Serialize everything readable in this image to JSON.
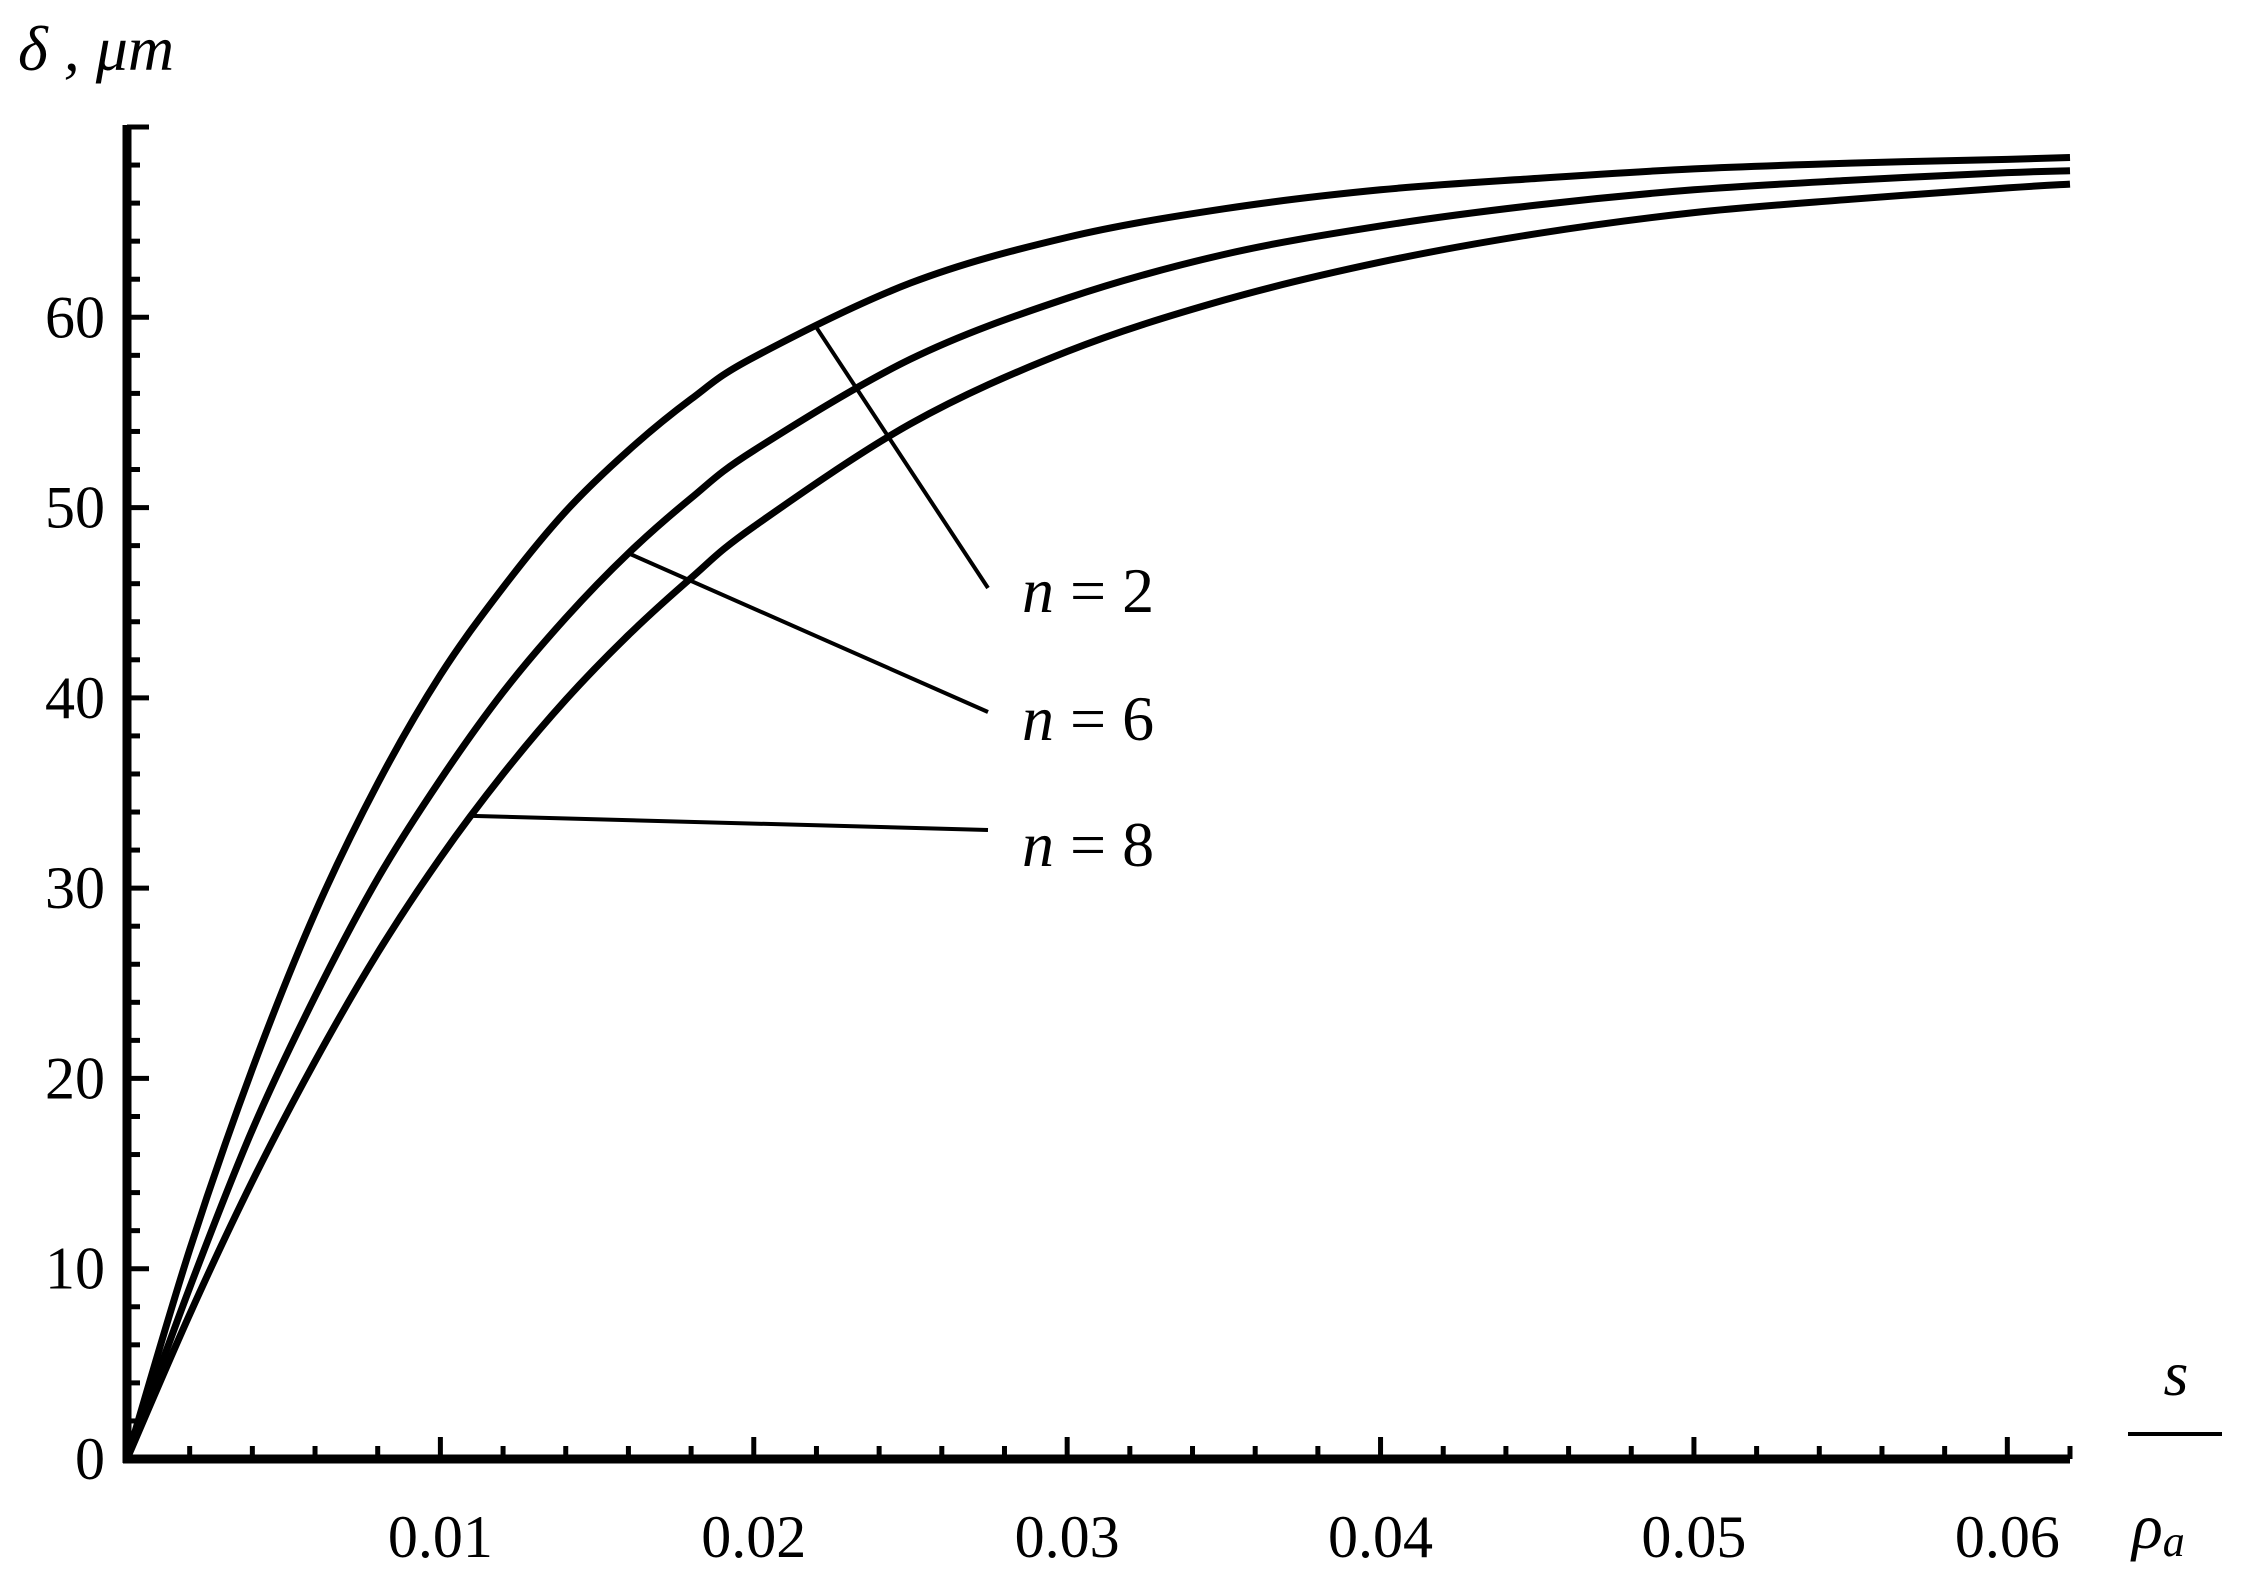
{
  "chart_data": {
    "type": "line",
    "ylabel": "δ , μm",
    "xlabel_numerator": "s",
    "xlabel_denominator_base": "ρ",
    "xlabel_denominator_sub": "a",
    "xlim": [
      0,
      0.062
    ],
    "ylim": [
      0,
      70
    ],
    "x_ticks": [
      "0.01",
      "0.02",
      "0.03",
      "0.04",
      "0.05",
      "0.06"
    ],
    "x_tick_values": [
      0.01,
      0.02,
      0.03,
      0.04,
      0.05,
      0.06
    ],
    "y_ticks": [
      "0",
      "10",
      "20",
      "30",
      "40",
      "50",
      "60"
    ],
    "y_tick_values": [
      0,
      10,
      20,
      30,
      40,
      50,
      60
    ],
    "grid": false,
    "line_color": "#000000",
    "series": [
      {
        "name": "n = 2",
        "x": [
          0,
          0.002,
          0.004,
          0.006,
          0.008,
          0.01,
          0.012,
          0.014,
          0.016,
          0.018,
          0.02,
          0.025,
          0.03,
          0.035,
          0.04,
          0.045,
          0.05,
          0.055,
          0.06,
          0.062
        ],
        "y": [
          0,
          11.0,
          20.5,
          28.7,
          35.5,
          41.2,
          45.8,
          49.8,
          53.0,
          55.7,
          57.9,
          61.8,
          64.2,
          65.7,
          66.7,
          67.3,
          67.8,
          68.1,
          68.3,
          68.4
        ]
      },
      {
        "name": "n = 6",
        "x": [
          0,
          0.002,
          0.004,
          0.006,
          0.008,
          0.01,
          0.012,
          0.014,
          0.016,
          0.018,
          0.02,
          0.025,
          0.03,
          0.035,
          0.04,
          0.045,
          0.05,
          0.055,
          0.06,
          0.062
        ],
        "y": [
          0,
          9.0,
          17.3,
          24.3,
          30.5,
          35.7,
          40.3,
          44.2,
          47.6,
          50.5,
          53.0,
          57.8,
          61.0,
          63.3,
          64.8,
          65.9,
          66.7,
          67.2,
          67.6,
          67.7
        ]
      },
      {
        "name": "n = 8",
        "x": [
          0,
          0.002,
          0.004,
          0.006,
          0.008,
          0.01,
          0.012,
          0.014,
          0.016,
          0.018,
          0.02,
          0.025,
          0.03,
          0.035,
          0.04,
          0.045,
          0.05,
          0.055,
          0.06,
          0.062
        ],
        "y": [
          0,
          7.6,
          14.6,
          20.9,
          26.6,
          31.6,
          36.0,
          39.9,
          43.3,
          46.3,
          49.0,
          54.4,
          58.2,
          60.9,
          62.9,
          64.4,
          65.5,
          66.2,
          66.8,
          67.0
        ]
      }
    ],
    "annotations": [
      {
        "text": "n = 2",
        "series": 0,
        "at_x": 0.022
      },
      {
        "text": "n = 6",
        "series": 1,
        "at_x": 0.016
      },
      {
        "text": "n = 8",
        "series": 2,
        "at_x": 0.011
      }
    ]
  }
}
